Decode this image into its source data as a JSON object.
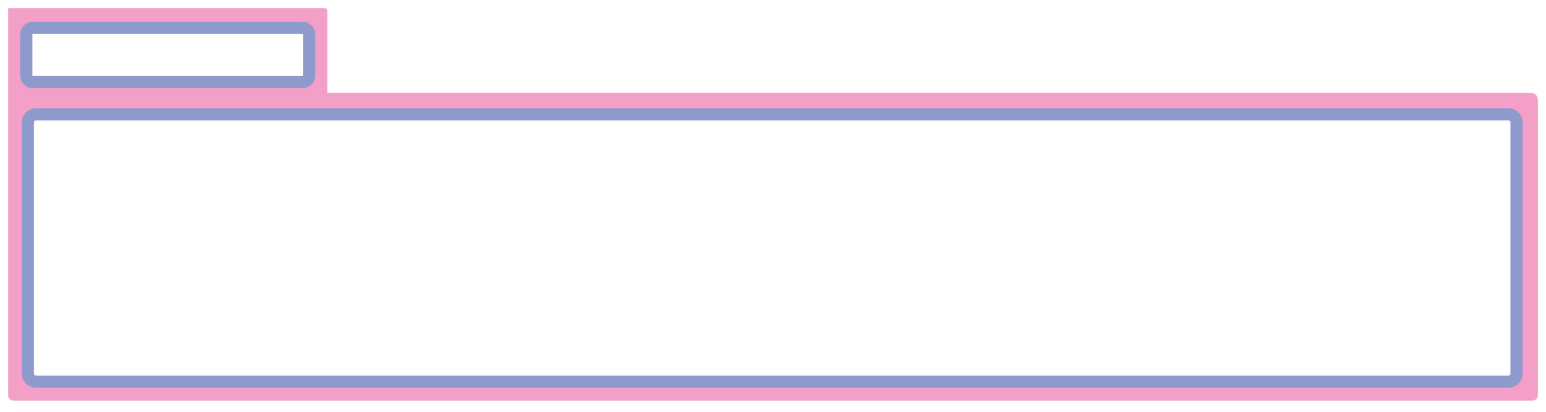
{
  "diagram": {
    "colors": {
      "background": "#ffffff",
      "outer_fill": "#f39fc7",
      "inner_border": "#8e99cc",
      "inner_fill": "#ffffff"
    },
    "shapes": [
      {
        "id": "tab",
        "kind": "tab-shape"
      },
      {
        "id": "panel",
        "kind": "panel-shape"
      }
    ]
  }
}
